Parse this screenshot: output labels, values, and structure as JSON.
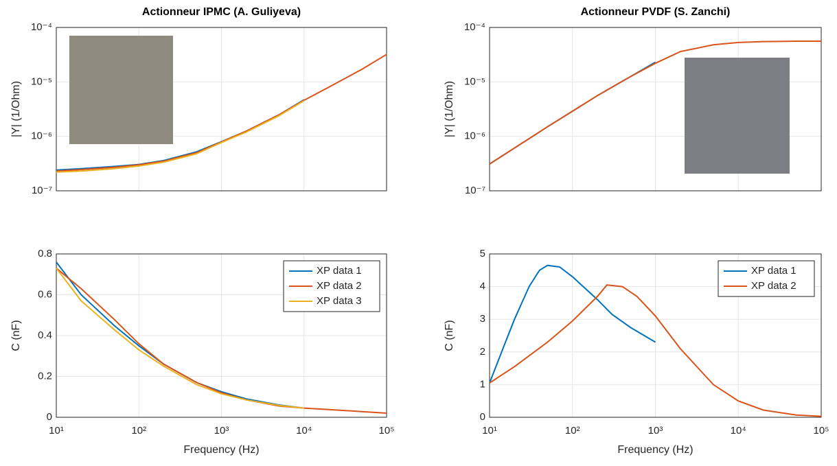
{
  "chart_data": [
    {
      "type": "line",
      "title": "Actionneur IPMC (A. Guliyeva)",
      "y_label": "|Y| (1/Ohm)",
      "xscale": "log",
      "yscale": "log",
      "grid": true,
      "show_xticklabels": false,
      "xlim": [
        10,
        100000
      ],
      "xticks": [
        10,
        100,
        1000,
        10000,
        100000
      ],
      "ylim": [
        1e-07,
        0.0001
      ],
      "yticks": [
        {
          "value": 1e-07,
          "label": "10⁻⁷"
        },
        {
          "value": 1e-06,
          "label": "10⁻⁶"
        },
        {
          "value": 1e-05,
          "label": "10⁻⁵"
        },
        {
          "value": 0.0001,
          "label": "10⁻⁴"
        }
      ],
      "series": [
        {
          "color": "#0072bd",
          "x": [
            10,
            20,
            50,
            100,
            200,
            500,
            1000,
            2000,
            5000,
            10000
          ],
          "values": [
            2.4e-07,
            2.55e-07,
            2.8e-07,
            3.05e-07,
            3.6e-07,
            5.2e-07,
            8e-07,
            1.25e-06,
            2.5e-06,
            4.7e-06
          ]
        },
        {
          "color": "#d95319",
          "x": [
            10,
            20,
            50,
            100,
            200,
            500,
            1000,
            2000,
            5000,
            10000,
            20000,
            50000,
            100000
          ],
          "values": [
            2.3e-07,
            2.45e-07,
            2.7e-07,
            3e-07,
            3.5e-07,
            5e-07,
            7.9e-07,
            1.25e-06,
            2.5e-06,
            4.6e-06,
            8e-06,
            1.7e-05,
            3.2e-05
          ]
        },
        {
          "color": "#edb120",
          "x": [
            10,
            20,
            50,
            100,
            200,
            500,
            1000,
            2000,
            5000,
            10000
          ],
          "values": [
            2.2e-07,
            2.3e-07,
            2.55e-07,
            2.85e-07,
            3.35e-07,
            4.8e-07,
            7.7e-07,
            1.2e-06,
            2.4e-06,
            4.5e-06
          ]
        }
      ]
    },
    {
      "type": "line",
      "title": "Actionneur PVDF (S. Zanchi)",
      "y_label": "|Y| (1/Ohm)",
      "xscale": "log",
      "yscale": "log",
      "grid": true,
      "show_xticklabels": false,
      "xlim": [
        10,
        100000
      ],
      "xticks": [
        10,
        100,
        1000,
        10000,
        100000
      ],
      "ylim": [
        1e-07,
        0.0001
      ],
      "yticks": [
        {
          "value": 1e-07,
          "label": "10⁻⁷"
        },
        {
          "value": 1e-06,
          "label": "10⁻⁶"
        },
        {
          "value": 1e-05,
          "label": "10⁻⁵"
        },
        {
          "value": 0.0001,
          "label": "10⁻⁴"
        }
      ],
      "series": [
        {
          "color": "#0072bd",
          "x": [
            10,
            20,
            50,
            100,
            200,
            500,
            1000
          ],
          "values": [
            3.1e-07,
            6.1e-07,
            1.5e-06,
            2.9e-06,
            5.6e-06,
            1.25e-05,
            2.3e-05
          ]
        },
        {
          "color": "#d95319",
          "x": [
            10,
            20,
            50,
            100,
            200,
            500,
            1000,
            2000,
            5000,
            10000,
            20000,
            50000,
            100000
          ],
          "values": [
            3.1e-07,
            6.1e-07,
            1.5e-06,
            2.9e-06,
            5.6e-06,
            1.25e-05,
            2.2e-05,
            3.6e-05,
            4.8e-05,
            5.3e-05,
            5.5e-05,
            5.6e-05,
            5.6e-05
          ]
        }
      ]
    },
    {
      "type": "line",
      "y_label": "C (nF)",
      "x_label": "Frequency (Hz)",
      "xscale": "log",
      "yscale": "linear",
      "grid": true,
      "show_xticklabels": true,
      "legend": "northeast",
      "xlim": [
        10,
        100000
      ],
      "xticks": [
        {
          "value": 10,
          "label": "10¹"
        },
        {
          "value": 100,
          "label": "10²"
        },
        {
          "value": 1000,
          "label": "10³"
        },
        {
          "value": 10000,
          "label": "10⁴"
        },
        {
          "value": 100000,
          "label": "10⁵"
        }
      ],
      "ylim": [
        0,
        0.8
      ],
      "yticks": [
        0,
        0.2,
        0.4,
        0.6,
        0.8
      ],
      "series": [
        {
          "name": "XP data 1",
          "color": "#0072bd",
          "x": [
            10,
            20,
            50,
            100,
            200,
            500,
            1000,
            2000,
            5000,
            10000
          ],
          "values": [
            0.76,
            0.6,
            0.45,
            0.35,
            0.26,
            0.17,
            0.125,
            0.09,
            0.06,
            0.045
          ]
        },
        {
          "name": "XP data 2",
          "color": "#d95319",
          "x": [
            10,
            20,
            50,
            100,
            200,
            500,
            1000,
            2000,
            5000,
            10000,
            20000,
            50000,
            100000
          ],
          "values": [
            0.73,
            0.63,
            0.48,
            0.36,
            0.26,
            0.17,
            0.12,
            0.085,
            0.055,
            0.045,
            0.038,
            0.028,
            0.02
          ]
        },
        {
          "name": "XP data 3",
          "color": "#edb120",
          "x": [
            10,
            20,
            50,
            100,
            200,
            500,
            1000,
            2000,
            5000,
            10000
          ],
          "values": [
            0.73,
            0.57,
            0.43,
            0.33,
            0.25,
            0.16,
            0.115,
            0.085,
            0.058,
            0.045
          ]
        }
      ]
    },
    {
      "type": "line",
      "y_label": "C (nF)",
      "x_label": "Frequency (Hz)",
      "xscale": "log",
      "yscale": "linear",
      "grid": true,
      "show_xticklabels": true,
      "legend": "northeast",
      "xlim": [
        10,
        100000
      ],
      "xticks": [
        {
          "value": 10,
          "label": "10¹"
        },
        {
          "value": 100,
          "label": "10²"
        },
        {
          "value": 1000,
          "label": "10³"
        },
        {
          "value": 10000,
          "label": "10⁴"
        },
        {
          "value": 100000,
          "label": "10⁵"
        }
      ],
      "ylim": [
        0,
        5
      ],
      "yticks": [
        0,
        1,
        2,
        3,
        4,
        5
      ],
      "series": [
        {
          "name": "XP data 1",
          "color": "#0072bd",
          "x": [
            10,
            15,
            20,
            30,
            40,
            50,
            70,
            100,
            200,
            300,
            500,
            1000
          ],
          "values": [
            1.05,
            2.2,
            3.0,
            4.0,
            4.5,
            4.65,
            4.6,
            4.3,
            3.6,
            3.15,
            2.75,
            2.3
          ]
        },
        {
          "name": "XP data 2",
          "color": "#d95319",
          "x": [
            10,
            20,
            50,
            100,
            200,
            260,
            400,
            600,
            1000,
            2000,
            5000,
            10000,
            20000,
            50000,
            100000
          ],
          "values": [
            1.05,
            1.55,
            2.3,
            2.95,
            3.7,
            4.05,
            4.0,
            3.7,
            3.1,
            2.1,
            1.0,
            0.5,
            0.22,
            0.07,
            0.03
          ]
        }
      ]
    }
  ]
}
